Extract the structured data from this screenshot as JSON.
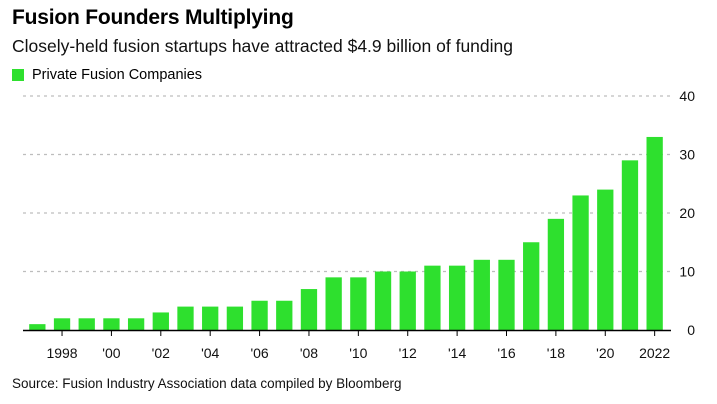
{
  "title": "Fusion Founders Multiplying",
  "subtitle": "Closely-held fusion startups have attracted $4.9 billion of funding",
  "source": "Source: Fusion Industry Association data compiled by Bloomberg",
  "colors": {
    "bar": "#2ee02e",
    "grid": "#bdbdbd",
    "axis": "#000000"
  },
  "chart_data": {
    "type": "bar",
    "legend": {
      "placement": "top-left",
      "entries": [
        "Private Fusion Companies"
      ]
    },
    "categories": [
      1997,
      1998,
      1999,
      2000,
      2001,
      2002,
      2003,
      2004,
      2005,
      2006,
      2007,
      2008,
      2009,
      2010,
      2011,
      2012,
      2013,
      2014,
      2015,
      2016,
      2017,
      2018,
      2019,
      2020,
      2021,
      2022
    ],
    "series": [
      {
        "name": "Private Fusion Companies",
        "values": [
          1,
          2,
          2,
          2,
          2,
          3,
          4,
          4,
          4,
          5,
          5,
          7,
          9,
          9,
          10,
          10,
          11,
          11,
          12,
          12,
          15,
          19,
          23,
          24,
          29,
          33
        ]
      }
    ],
    "x_tick_labels": [
      "1998",
      "'00",
      "'02",
      "'04",
      "'06",
      "'08",
      "'10",
      "'12",
      "'14",
      "'16",
      "'18",
      "'20",
      "2022"
    ],
    "y_tick_labels": [
      "0",
      "10",
      "20",
      "30",
      "40"
    ],
    "y_ticks": [
      0,
      10,
      20,
      30,
      40
    ],
    "ylim": [
      0,
      40
    ],
    "y_axis_position": "right",
    "grid": true
  }
}
